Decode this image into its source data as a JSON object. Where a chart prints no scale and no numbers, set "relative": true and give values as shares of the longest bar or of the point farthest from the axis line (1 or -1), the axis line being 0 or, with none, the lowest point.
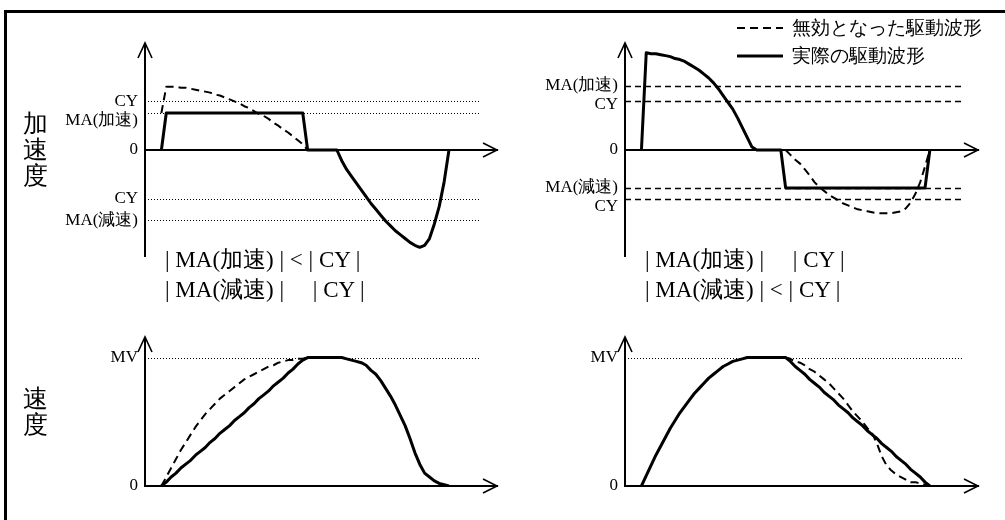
{
  "chart_data": [
    {
      "type": "line",
      "relative": true,
      "ylabel": "加速度",
      "categories": [
        null,
        null,
        null,
        null,
        null,
        null,
        null,
        null,
        null,
        null,
        null,
        null,
        null,
        null,
        null,
        null,
        null,
        null,
        null,
        null,
        null,
        null,
        null,
        null,
        null,
        null,
        null,
        null,
        null,
        null,
        null,
        null,
        null,
        null,
        null,
        null,
        null,
        null,
        null,
        null,
        null,
        null,
        null,
        null,
        null,
        null,
        null,
        null,
        null,
        null,
        null,
        null,
        null,
        null,
        null,
        null,
        null,
        null,
        null,
        null
      ],
      "series": [
        {
          "color": "#000000",
          "line_style": "dashed",
          "values": [
            0.38,
            0.65,
            0.65,
            0.65,
            0.64,
            0.64,
            0.63,
            0.62,
            0.61,
            0.6,
            0.59,
            0.57,
            0.56,
            0.54,
            0.52,
            0.5,
            0.48,
            0.45,
            0.43,
            0.4,
            0.37,
            0.35,
            0.32,
            0.28,
            0.25,
            0.21,
            0.18,
            0.14,
            0.1,
            0.06,
            0,
            null,
            null,
            null,
            null,
            null,
            null,
            null,
            null,
            null,
            null,
            null,
            null,
            null,
            null,
            null,
            null,
            null,
            null,
            null,
            null,
            null,
            null,
            null,
            null,
            null,
            null,
            null,
            null,
            null
          ]
        },
        {
          "color": "#000000",
          "line_style": "solid",
          "values": [
            0,
            0.38,
            0.38,
            0.38,
            0.38,
            0.38,
            0.38,
            0.38,
            0.38,
            0.38,
            0.38,
            0.38,
            0.38,
            0.38,
            0.38,
            0.38,
            0.38,
            0.38,
            0.38,
            0.38,
            0.38,
            0.38,
            0.38,
            0.38,
            0.38,
            0.38,
            0.38,
            0.38,
            0.38,
            0.38,
            0,
            0,
            0,
            0,
            0,
            0,
            0,
            -0.11,
            -0.2,
            -0.27,
            -0.34,
            -0.41,
            -0.48,
            -0.55,
            -0.61,
            -0.67,
            -0.73,
            -0.78,
            -0.83,
            -0.87,
            -0.91,
            -0.95,
            -0.98,
            -1,
            -0.98,
            -0.91,
            -0.76,
            -0.58,
            -0.33,
            0
          ]
        }
      ],
      "ref_lines": [
        {
          "axis": "y",
          "value": 0.5,
          "label": "CY",
          "color": "#000000",
          "line_style": "dotted"
        },
        {
          "axis": "y",
          "value": 0.38,
          "label": "MA(加速)",
          "color": "#000000",
          "line_style": "dotted"
        },
        {
          "axis": "y",
          "value": 0,
          "label": "0",
          "color": "#000000",
          "line_style": "solid"
        },
        {
          "axis": "y",
          "value": -0.5,
          "label": "CY",
          "color": "#000000",
          "line_style": "dotted"
        },
        {
          "axis": "y",
          "value": -0.72,
          "label": "MA(減速)",
          "color": "#000000",
          "line_style": "dotted"
        }
      ],
      "annotations": [
        "| MA(加速) | < | CY |",
        "| MA(減速) |     | CY |"
      ]
    },
    {
      "type": "line",
      "relative": true,
      "legend": "top right",
      "categories": [
        null,
        null,
        null,
        null,
        null,
        null,
        null,
        null,
        null,
        null,
        null,
        null,
        null,
        null,
        null,
        null,
        null,
        null,
        null,
        null,
        null,
        null,
        null,
        null,
        null,
        null,
        null,
        null,
        null,
        null,
        null,
        null,
        null,
        null,
        null,
        null,
        null,
        null,
        null,
        null,
        null,
        null,
        null,
        null,
        null,
        null,
        null,
        null,
        null,
        null,
        null,
        null,
        null,
        null,
        null,
        null,
        null,
        null,
        null,
        null,
        null
      ],
      "series": [
        {
          "name": "無効となった駆動波形",
          "color": "#000000",
          "line_style": "dashed",
          "values": [
            null,
            null,
            null,
            null,
            null,
            null,
            null,
            null,
            null,
            null,
            null,
            null,
            null,
            null,
            null,
            null,
            null,
            null,
            null,
            null,
            null,
            null,
            null,
            null,
            null,
            null,
            null,
            null,
            null,
            null,
            0,
            -0.05,
            -0.1,
            -0.14,
            -0.2,
            -0.26,
            -0.33,
            -0.38,
            -0.42,
            -0.46,
            -0.49,
            -0.52,
            -0.55,
            -0.57,
            -0.59,
            -0.61,
            -0.62,
            -0.63,
            -0.64,
            -0.65,
            -0.65,
            -0.65,
            -0.65,
            -0.64,
            -0.63,
            -0.6,
            -0.54,
            -0.45,
            -0.33,
            -0.17,
            0
          ]
        },
        {
          "name": "実際の駆動波形",
          "color": "#000000",
          "line_style": "solid",
          "values": [
            0,
            1,
            0.99,
            0.99,
            0.98,
            0.97,
            0.96,
            0.94,
            0.93,
            0.91,
            0.88,
            0.85,
            0.82,
            0.78,
            0.74,
            0.69,
            0.63,
            0.56,
            0.49,
            0.42,
            0.33,
            0.23,
            0.13,
            0.03,
            0,
            0,
            0,
            0,
            0,
            0,
            -0.39,
            -0.39,
            -0.39,
            -0.39,
            -0.39,
            -0.39,
            -0.39,
            -0.39,
            -0.39,
            -0.39,
            -0.39,
            -0.39,
            -0.39,
            -0.39,
            -0.39,
            -0.39,
            -0.39,
            -0.39,
            -0.39,
            -0.39,
            -0.39,
            -0.39,
            -0.39,
            -0.39,
            -0.39,
            -0.39,
            -0.39,
            -0.39,
            -0.39,
            -0.39,
            0
          ]
        }
      ],
      "ref_lines": [
        {
          "axis": "y",
          "value": 0.66,
          "label": "MA(加速)",
          "color": "#000000",
          "line_style": "dashed"
        },
        {
          "axis": "y",
          "value": 0.5,
          "label": "CY",
          "color": "#000000",
          "line_style": "dashed"
        },
        {
          "axis": "y",
          "value": 0,
          "label": "0",
          "color": "#000000",
          "line_style": "solid"
        },
        {
          "axis": "y",
          "value": -0.39,
          "label": "MA(減速)",
          "color": "#000000",
          "line_style": "dashed"
        },
        {
          "axis": "y",
          "value": -0.5,
          "label": "CY",
          "color": "#000000",
          "line_style": "dashed"
        }
      ],
      "annotations": [
        "| MA(加速) |     | CY |",
        "| MA(減速) | < | CY |"
      ]
    },
    {
      "type": "line",
      "relative": true,
      "ylabel": "速度",
      "categories": [
        null,
        null,
        null,
        null,
        null,
        null,
        null,
        null,
        null,
        null,
        null,
        null,
        null,
        null,
        null,
        null,
        null,
        null,
        null,
        null,
        null,
        null,
        null,
        null,
        null,
        null,
        null,
        null,
        null,
        null,
        null,
        null,
        null,
        null,
        null,
        null,
        null,
        null,
        null,
        null,
        null,
        null,
        null,
        null,
        null,
        null,
        null,
        null,
        null,
        null,
        null,
        null,
        null,
        null,
        null,
        null,
        null,
        null,
        null,
        null
      ],
      "series": [
        {
          "color": "#000000",
          "line_style": "dashed",
          "values": [
            0,
            0.07,
            0.14,
            0.21,
            0.28,
            0.34,
            0.4,
            0.46,
            0.51,
            0.56,
            0.6,
            0.64,
            0.68,
            0.71,
            0.74,
            0.77,
            0.8,
            0.83,
            0.85,
            0.87,
            0.89,
            0.91,
            0.93,
            0.94,
            0.96,
            0.97,
            0.98,
            0.98,
            0.99,
            0.99,
            1,
            null,
            null,
            null,
            null,
            null,
            null,
            null,
            null,
            null,
            null,
            null,
            null,
            null,
            null,
            null,
            null,
            null,
            null,
            null,
            null,
            null,
            null,
            null,
            null,
            null,
            null,
            null,
            null,
            null
          ]
        },
        {
          "color": "#000000",
          "line_style": "solid",
          "values": [
            0,
            0.03,
            0.07,
            0.1,
            0.14,
            0.17,
            0.2,
            0.24,
            0.27,
            0.3,
            0.34,
            0.37,
            0.41,
            0.44,
            0.47,
            0.51,
            0.54,
            0.57,
            0.61,
            0.64,
            0.68,
            0.71,
            0.74,
            0.78,
            0.81,
            0.84,
            0.88,
            0.91,
            0.95,
            0.98,
            1,
            1,
            1,
            1,
            1,
            1,
            1,
            1,
            0.99,
            0.98,
            0.97,
            0.96,
            0.94,
            0.9,
            0.87,
            0.82,
            0.76,
            0.7,
            0.63,
            0.55,
            0.47,
            0.37,
            0.26,
            0.17,
            0.1,
            0.07,
            0.04,
            0.02,
            0.01,
            0
          ]
        }
      ],
      "ref_lines": [
        {
          "axis": "y",
          "value": 1,
          "label": "MV",
          "color": "#000000",
          "line_style": "dotted"
        },
        {
          "axis": "y",
          "value": 0,
          "label": "0",
          "color": "#000000",
          "line_style": "solid"
        }
      ]
    },
    {
      "type": "line",
      "relative": true,
      "categories": [
        null,
        null,
        null,
        null,
        null,
        null,
        null,
        null,
        null,
        null,
        null,
        null,
        null,
        null,
        null,
        null,
        null,
        null,
        null,
        null,
        null,
        null,
        null,
        null,
        null,
        null,
        null,
        null,
        null,
        null,
        null,
        null,
        null,
        null,
        null,
        null,
        null,
        null,
        null,
        null,
        null,
        null,
        null,
        null,
        null,
        null,
        null,
        null,
        null,
        null,
        null,
        null,
        null,
        null,
        null,
        null,
        null,
        null,
        null,
        null,
        null
      ],
      "series": [
        {
          "color": "#000000",
          "line_style": "dashed",
          "values": [
            null,
            null,
            null,
            null,
            null,
            null,
            null,
            null,
            null,
            null,
            null,
            null,
            null,
            null,
            null,
            null,
            null,
            null,
            null,
            null,
            null,
            null,
            null,
            null,
            null,
            null,
            null,
            null,
            null,
            null,
            1,
            0.99,
            0.97,
            0.96,
            0.94,
            0.91,
            0.89,
            0.86,
            0.83,
            0.8,
            0.76,
            0.72,
            0.68,
            0.63,
            0.58,
            0.54,
            0.5,
            0.45,
            0.41,
            0.33,
            0.23,
            0.16,
            0.12,
            0.09,
            0.07,
            0.05,
            0.03,
            0.03,
            0.02,
            0.01,
            0
          ]
        },
        {
          "color": "#000000",
          "line_style": "solid",
          "values": [
            0,
            0.08,
            0.16,
            0.24,
            0.31,
            0.38,
            0.45,
            0.51,
            0.57,
            0.62,
            0.67,
            0.72,
            0.76,
            0.8,
            0.84,
            0.87,
            0.9,
            0.93,
            0.95,
            0.97,
            0.98,
            0.99,
            1,
            1,
            1,
            1,
            1,
            1,
            1,
            1,
            1,
            0.97,
            0.93,
            0.9,
            0.87,
            0.83,
            0.8,
            0.77,
            0.73,
            0.7,
            0.67,
            0.63,
            0.6,
            0.57,
            0.53,
            0.5,
            0.47,
            0.43,
            0.4,
            0.37,
            0.33,
            0.3,
            0.27,
            0.23,
            0.2,
            0.17,
            0.13,
            0.1,
            0.07,
            0.03,
            0
          ]
        }
      ],
      "ref_lines": [
        {
          "axis": "y",
          "value": 1,
          "label": "MV",
          "color": "#000000",
          "line_style": "dotted"
        },
        {
          "axis": "y",
          "value": 0,
          "label": "0",
          "color": "#000000",
          "line_style": "solid"
        }
      ]
    }
  ]
}
